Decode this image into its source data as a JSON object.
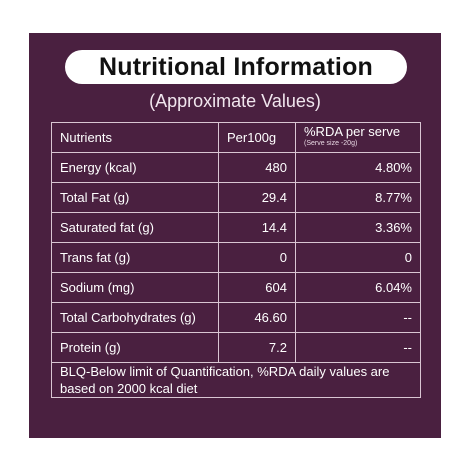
{
  "title": "Nutritional Information",
  "subtitle": "(Approximate Values)",
  "table": {
    "headers": {
      "nutrients": "Nutrients",
      "per100g": "Per100g",
      "rda": "%RDA per serve",
      "rda_note": "(Serve size -20g)"
    },
    "rows": [
      {
        "name": "Energy (kcal)",
        "per100g": "480",
        "rda": "4.80%"
      },
      {
        "name": "Total Fat (g)",
        "per100g": "29.4",
        "rda": "8.77%"
      },
      {
        "name": "Saturated fat (g)",
        "per100g": "14.4",
        "rda": "3.36%"
      },
      {
        "name": "Trans fat (g)",
        "per100g": "0",
        "rda": "0"
      },
      {
        "name": "Sodium (mg)",
        "per100g": "604",
        "rda": "6.04%"
      },
      {
        "name": "Total Carbohydrates (g)",
        "per100g": "46.60",
        "rda": "--"
      },
      {
        "name": "Protein (g)",
        "per100g": "7.2",
        "rda": "--"
      }
    ],
    "footnote": "BLQ-Below limit of Quantification, %RDA daily values are based on 2000 kcal diet"
  },
  "colors": {
    "panel_background": "#4a2040",
    "title_pill": "#ffffff",
    "text": "#ffffff"
  }
}
